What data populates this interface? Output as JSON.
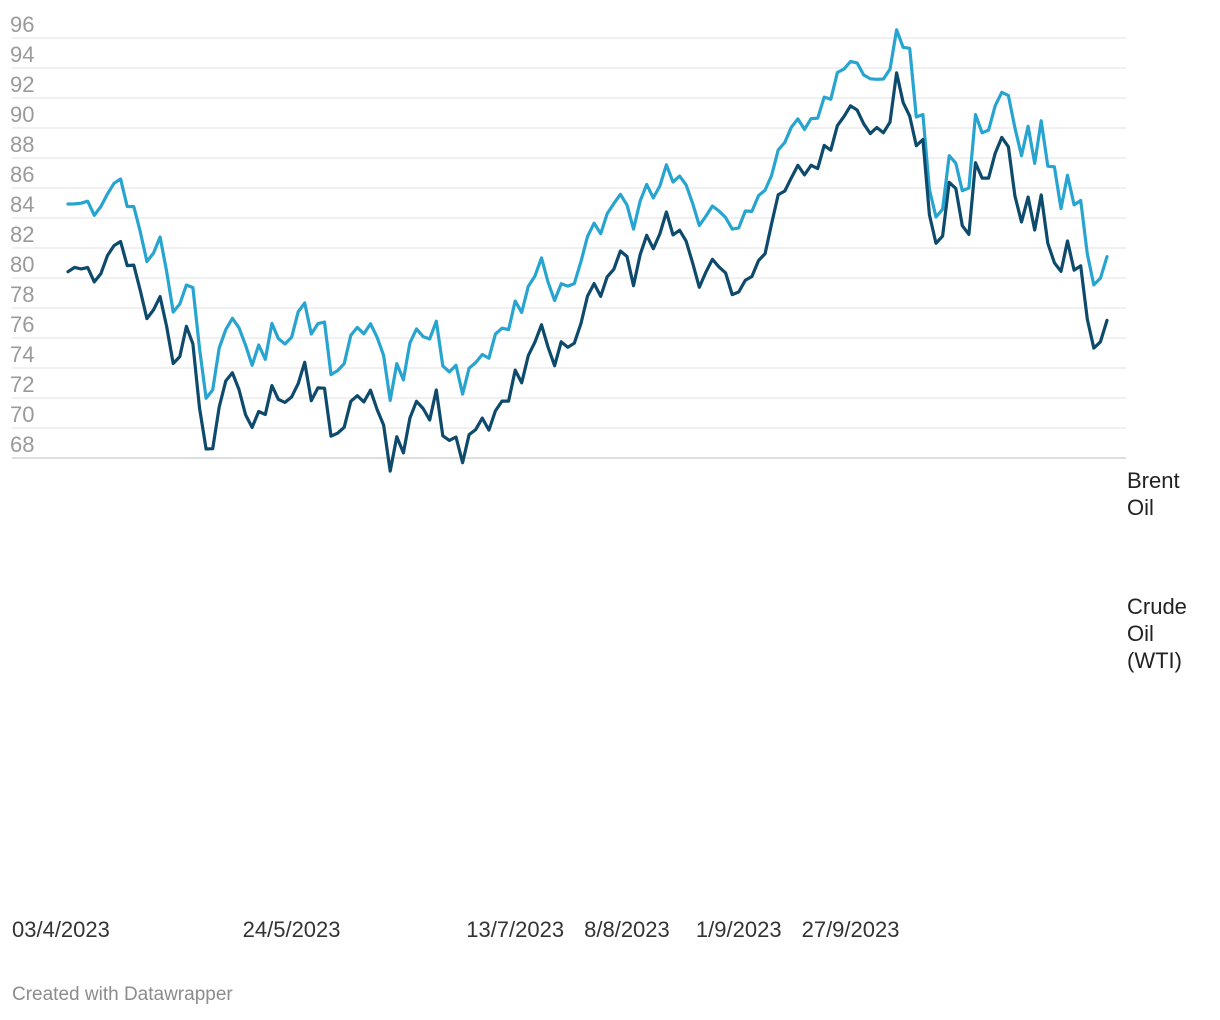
{
  "chart_data": {
    "type": "line",
    "x_ticks": [
      "03/4/2023",
      "24/5/2023",
      "13/7/2023",
      "8/8/2023",
      "1/9/2023",
      "27/9/2023"
    ],
    "y_ticks": [
      68,
      70,
      72,
      74,
      76,
      78,
      80,
      82,
      84,
      86,
      88,
      90,
      92,
      94,
      96
    ],
    "ylim": [
      67.2,
      96.8
    ],
    "grid": true,
    "colors": {
      "Brent Oil": "#27a4cf",
      "Crude Oil (WTI)": "#0d4a6b"
    },
    "series": [
      {
        "name": "Brent Oil",
        "label_lines": [
          "Brent",
          "Oil"
        ],
        "values": [
          84.93,
          84.94,
          84.99,
          85.12,
          84.18,
          84.77,
          85.61,
          86.31,
          86.6,
          84.77,
          84.76,
          83.08,
          81.1,
          81.66,
          82.73,
          80.45,
          77.73,
          78.27,
          79.53,
          79.36,
          75.32,
          71.98,
          72.54,
          75.34,
          76.56,
          77.31,
          76.68,
          75.51,
          74.18,
          75.53,
          74.58,
          76.97,
          75.96,
          75.6,
          76.05,
          77.75,
          78.34,
          76.27,
          76.95,
          77.07,
          73.56,
          73.83,
          74.29,
          76.17,
          76.71,
          76.28,
          76.95,
          76.05,
          74.84,
          71.84,
          74.29,
          73.21,
          75.67,
          76.61,
          76.09,
          75.93,
          77.12,
          74.14,
          73.74,
          74.18,
          72.26,
          73.99,
          74.36,
          74.9,
          74.65,
          76.26,
          76.65,
          76.56,
          78.47,
          77.71,
          79.44,
          80.13,
          81.34,
          79.73,
          78.5,
          79.62,
          79.46,
          79.63,
          81.08,
          82.76,
          83.65,
          82.95,
          84.29,
          84.96,
          85.58,
          84.86,
          83.26,
          85.12,
          86.24,
          85.34,
          86.13,
          87.55,
          86.4,
          86.79,
          86.21,
          84.96,
          83.5,
          84.12,
          84.8,
          84.47,
          84.03,
          83.26,
          83.34,
          84.47,
          84.44,
          85.49,
          85.86,
          86.84,
          88.53,
          89.04,
          90.06,
          90.61,
          89.91,
          90.63,
          90.65,
          92.06,
          91.92,
          93.7,
          93.93,
          94.43,
          94.34,
          93.53,
          93.28,
          93.25,
          93.27,
          93.92,
          96.55,
          95.38,
          95.31,
          90.73,
          90.9,
          85.91,
          84.07,
          84.58,
          88.15,
          87.65,
          85.82,
          86.0,
          90.89,
          89.68,
          89.86,
          91.49,
          92.38,
          92.16,
          90.01,
          88.15,
          90.12,
          87.64,
          90.48,
          87.45,
          87.41,
          84.63,
          86.85,
          84.87,
          85.17,
          81.61,
          79.54,
          79.98,
          81.42
        ]
      },
      {
        "name": "Crude Oil (WTI)",
        "label_lines": [
          "Crude",
          "Oil",
          "(WTI)"
        ],
        "values": [
          80.42,
          80.71,
          80.61,
          80.7,
          79.74,
          80.29,
          81.5,
          82.16,
          82.43,
          80.83,
          80.86,
          79.16,
          77.29,
          77.87,
          78.76,
          76.78,
          74.3,
          74.76,
          76.78,
          75.6,
          71.34,
          68.6,
          68.62,
          71.4,
          73.14,
          73.68,
          72.56,
          70.87,
          70.04,
          71.1,
          70.9,
          72.83,
          71.91,
          71.71,
          72.07,
          72.96,
          74.38,
          71.82,
          72.67,
          72.65,
          69.46,
          69.65,
          70.05,
          71.78,
          72.15,
          71.74,
          72.52,
          71.23,
          70.2,
          67.13,
          69.42,
          68.34,
          70.66,
          71.78,
          71.3,
          70.53,
          72.53,
          69.48,
          69.17,
          69.4,
          67.69,
          69.56,
          69.89,
          70.66,
          69.86,
          71.14,
          71.79,
          71.79,
          73.86,
          73.01,
          74.83,
          75.72,
          76.88,
          75.4,
          74.15,
          75.75,
          75.38,
          75.65,
          76.95,
          78.79,
          79.63,
          78.78,
          80.08,
          80.58,
          81.8,
          81.43,
          79.49,
          81.55,
          82.85,
          81.95,
          82.93,
          84.4,
          82.87,
          83.19,
          82.46,
          80.99,
          79.38,
          80.39,
          81.25,
          80.74,
          80.34,
          78.89,
          79.07,
          79.85,
          80.1,
          81.16,
          81.63,
          83.63,
          85.55,
          85.8,
          86.69,
          87.51,
          86.87,
          87.51,
          87.29,
          88.84,
          88.52,
          90.16,
          90.77,
          91.48,
          91.2,
          90.28,
          89.63,
          90.03,
          89.68,
          90.39,
          93.68,
          91.71,
          90.79,
          88.82,
          89.23,
          84.22,
          82.31,
          82.79,
          86.38,
          85.97,
          83.49,
          82.91,
          87.69,
          86.66,
          86.66,
          88.32,
          89.37,
          88.75,
          85.48,
          83.73,
          85.39,
          83.2,
          85.54,
          82.32,
          81.01,
          80.44,
          82.47,
          80.52,
          80.81,
          77.26,
          75.33,
          75.74,
          77.17
        ]
      }
    ]
  },
  "footer": "Created with Datawrapper"
}
